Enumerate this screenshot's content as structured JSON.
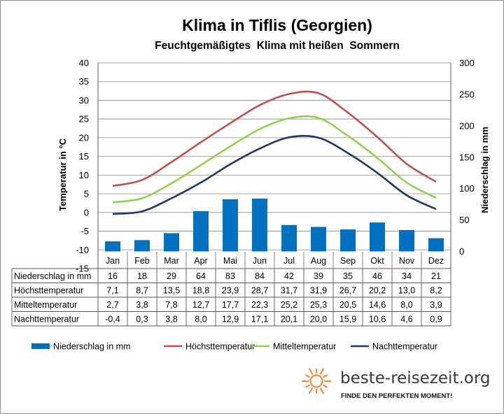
{
  "chart_data": {
    "type": "bar+line",
    "title": "Klima in Tiflis (Georgien)",
    "subtitle": "Feuchtgemäßigtes  Klima mit heißen  Sommern",
    "ylabel_left": "Temperatur in °C",
    "ylabel_right": "Niederschlag in mm",
    "ylim_left": [
      -15,
      40
    ],
    "ylim_right": [
      0,
      300
    ],
    "yticks_left": [
      40,
      35,
      30,
      25,
      20,
      15,
      10,
      5,
      0,
      -5,
      -10,
      -15
    ],
    "yticks_right": [
      300,
      250,
      200,
      150,
      100,
      50,
      0
    ],
    "grid": true,
    "legend_position": "bottom",
    "categories": [
      "Jan",
      "Feb",
      "Mar",
      "Apr",
      "Mai",
      "Jun",
      "Jul",
      "Aug",
      "Sep",
      "Okt",
      "Nov",
      "Dez"
    ],
    "series": [
      {
        "name": "Niederschlag in mm",
        "kind": "bar",
        "axis": "right",
        "color": "#0070c0",
        "values": [
          16,
          18,
          29,
          64,
          83,
          84,
          42,
          39,
          35,
          46,
          34,
          21
        ],
        "labels": [
          "16",
          "18",
          "29",
          "64",
          "83",
          "84",
          "42",
          "39",
          "35",
          "46",
          "34",
          "21"
        ]
      },
      {
        "name": "Höchsttemperatur",
        "kind": "line",
        "axis": "left",
        "color": "#c0504d",
        "values": [
          7.1,
          8.7,
          13.5,
          18.8,
          23.9,
          28.7,
          31.7,
          31.9,
          26.7,
          20.2,
          13.0,
          8.2
        ],
        "labels": [
          "7,1",
          "8,7",
          "13,5",
          "18,8",
          "23,9",
          "28,7",
          "31,7",
          "31,9",
          "26,7",
          "20,2",
          "13,0",
          "8,2"
        ]
      },
      {
        "name": "Mitteltemperatur",
        "kind": "line",
        "axis": "left",
        "color": "#92d050",
        "values": [
          2.7,
          3.8,
          7.8,
          12.7,
          17.7,
          22.3,
          25.2,
          25.3,
          20.5,
          14.6,
          8.0,
          3.9
        ],
        "labels": [
          "2,7",
          "3,8",
          "7,8",
          "12,7",
          "17,7",
          "22,3",
          "25,2",
          "25,3",
          "20,5",
          "14,6",
          "8,0",
          "3,9"
        ]
      },
      {
        "name": "Nachttemperatur",
        "kind": "line",
        "axis": "left",
        "color": "#1f3864",
        "values": [
          -0.4,
          0.3,
          3.8,
          8.0,
          12.9,
          17.1,
          20.1,
          20.0,
          15.9,
          10.6,
          4.6,
          0.9
        ],
        "labels": [
          "-0,4",
          "0,3",
          "3,8",
          "8,0",
          "12,9",
          "17,1",
          "20,1",
          "20,0",
          "15,9",
          "10,6",
          "4,6",
          "0,9"
        ]
      }
    ]
  },
  "branding": {
    "site": "beste-reisezeit.org",
    "tagline": "FINDE DEN PERFEKTEN MOMENT!",
    "logo_icon": "sun-icon",
    "logo_color": "#f08c3c"
  }
}
